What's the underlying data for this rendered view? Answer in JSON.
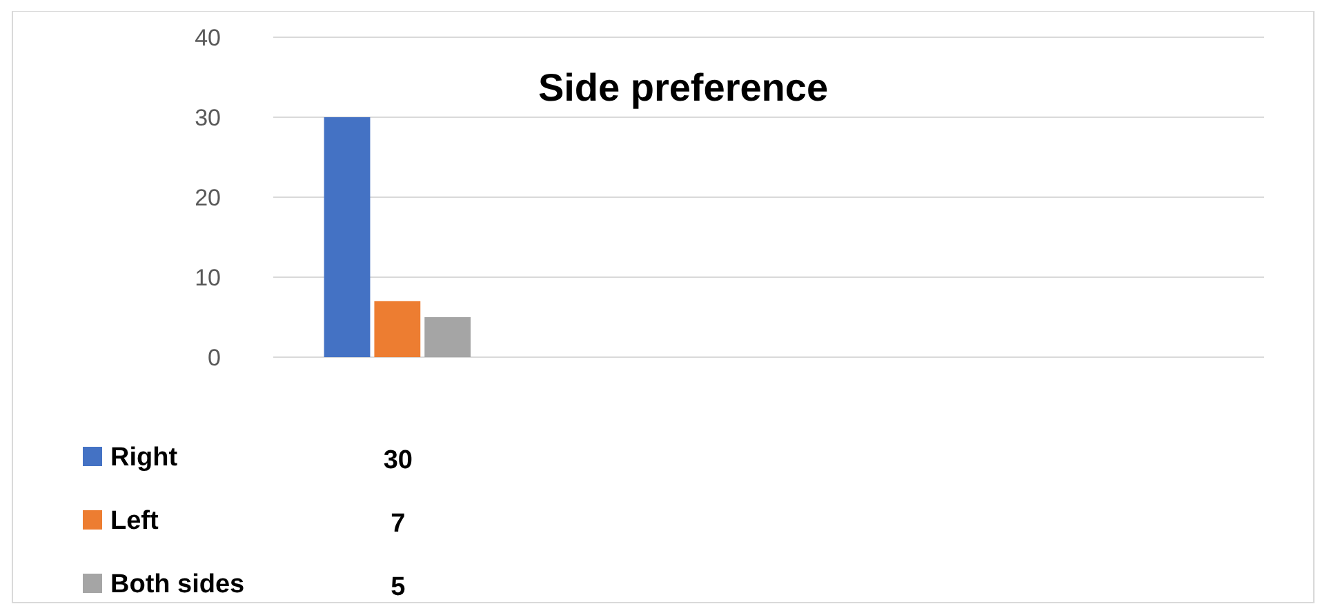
{
  "chart_data": {
    "type": "bar",
    "title": "Side preference",
    "categories": [
      null,
      null,
      null,
      null
    ],
    "series": [
      {
        "name": "Right",
        "color": "#4472c4",
        "values": [
          30,
          null,
          null,
          null
        ]
      },
      {
        "name": "Left",
        "color": "#ed7d31",
        "values": [
          7,
          null,
          null,
          null
        ]
      },
      {
        "name": "Both sides",
        "color": "#a5a5a5",
        "values": [
          5,
          null,
          null,
          null
        ]
      }
    ],
    "ylim": [
      0,
      40
    ],
    "yticks": [
      0,
      10,
      20,
      30,
      40
    ],
    "grid": "y",
    "legend": "bottom",
    "annotations": [
      "30",
      "7",
      "5"
    ]
  }
}
